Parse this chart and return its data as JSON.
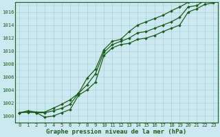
{
  "xlabel": "Graphe pression niveau de la mer (hPa)",
  "x": [
    0,
    1,
    2,
    3,
    4,
    5,
    6,
    7,
    8,
    9,
    10,
    11,
    12,
    13,
    14,
    15,
    16,
    17,
    18,
    19,
    20,
    21,
    22,
    23
  ],
  "line1": [
    1000.5,
    1000.6,
    1000.5,
    999.8,
    1000.0,
    1000.5,
    1001.0,
    1003.2,
    1004.0,
    1005.2,
    1009.3,
    1010.5,
    1011.0,
    1011.2,
    1011.8,
    1012.0,
    1012.4,
    1013.0,
    1013.5,
    1014.0,
    1016.0,
    1016.5,
    1017.2,
    1017.4
  ],
  "line2": [
    1000.5,
    1000.6,
    1000.5,
    1000.5,
    1000.8,
    1001.2,
    1001.8,
    1003.5,
    1004.8,
    1006.5,
    1009.8,
    1011.0,
    1011.5,
    1012.0,
    1012.8,
    1013.0,
    1013.5,
    1014.0,
    1014.5,
    1015.2,
    1016.8,
    1017.0,
    1017.8,
    1017.8
  ],
  "line3": [
    1000.5,
    1000.8,
    1000.6,
    1000.6,
    1001.2,
    1001.8,
    1002.5,
    1003.5,
    1005.8,
    1007.2,
    1010.2,
    1011.5,
    1011.8,
    1013.0,
    1014.0,
    1014.5,
    1015.0,
    1015.5,
    1016.2,
    1016.8,
    1017.5,
    1018.0,
    1018.5,
    1018.8
  ],
  "ylim_min": 999.0,
  "ylim_max": 1017.5,
  "yticks": [
    1000,
    1002,
    1004,
    1006,
    1008,
    1010,
    1012,
    1014,
    1016
  ],
  "bg_color": "#cce8f0",
  "grid_color": "#aaccd8",
  "line_color": "#1a5c1a",
  "marker": "D",
  "marker_size": 2.0,
  "line_width": 0.9,
  "tick_fontsize": 5.2,
  "xlabel_fontsize": 6.5
}
